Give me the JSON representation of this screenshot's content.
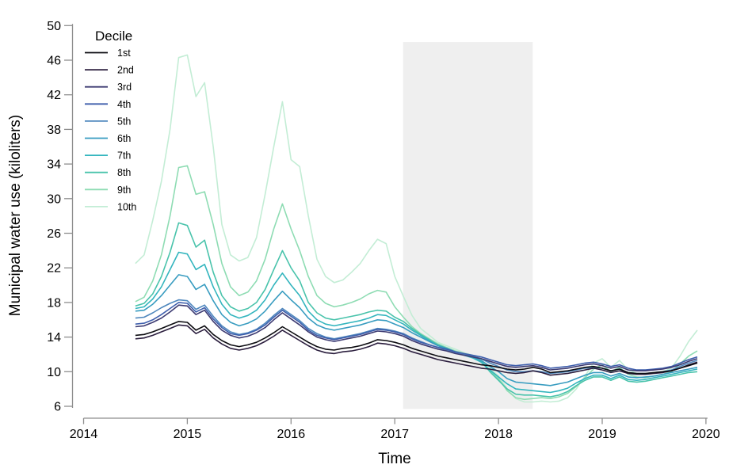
{
  "chart_data": {
    "type": "line",
    "title": "",
    "xlabel": "Time",
    "ylabel": "Municipal water use (kiloliters)",
    "legend_title": "Decile",
    "legend_position": "top-left",
    "grid": false,
    "xlim": [
      2014,
      2020
    ],
    "ylim": [
      6,
      50
    ],
    "x_ticks": [
      2014,
      2015,
      2016,
      2017,
      2018,
      2019,
      2020
    ],
    "y_ticks": [
      6,
      10,
      14,
      18,
      22,
      26,
      30,
      34,
      38,
      42,
      46,
      50
    ],
    "x_start": 2014.5,
    "x_step": 0.0833333,
    "shaded_region": {
      "x0": 2017.08,
      "x1": 2018.33,
      "y0": 5.7,
      "y1": 48.1,
      "color": "#efefef"
    },
    "axis_color": "#8e8e8e",
    "series": [
      {
        "name": "1st",
        "color": "#0d0d12",
        "values": [
          14.2,
          14.3,
          14.6,
          15.0,
          15.4,
          15.8,
          15.7,
          14.8,
          15.3,
          14.3,
          13.6,
          13.1,
          12.9,
          13.1,
          13.4,
          13.9,
          14.5,
          15.2,
          14.6,
          14.0,
          13.4,
          12.9,
          12.6,
          12.5,
          12.7,
          12.8,
          13.0,
          13.3,
          13.7,
          13.6,
          13.4,
          13.1,
          12.7,
          12.4,
          12.1,
          11.8,
          11.6,
          11.4,
          11.2,
          11.0,
          10.8,
          10.7,
          10.5,
          10.3,
          10.2,
          10.3,
          10.5,
          10.3,
          9.9,
          10.0,
          10.1,
          10.3,
          10.5,
          10.6,
          10.4,
          10.1,
          10.3,
          9.9,
          9.8,
          9.8,
          9.9,
          10.0,
          10.1,
          10.4,
          10.7,
          11.0
        ]
      },
      {
        "name": "2nd",
        "color": "#2b1e3e",
        "values": [
          13.8,
          13.9,
          14.2,
          14.6,
          15.0,
          15.4,
          15.3,
          14.4,
          14.9,
          13.9,
          13.2,
          12.7,
          12.5,
          12.7,
          13.0,
          13.5,
          14.1,
          14.8,
          14.2,
          13.6,
          13.0,
          12.5,
          12.2,
          12.1,
          12.3,
          12.4,
          12.6,
          12.9,
          13.3,
          13.2,
          13.0,
          12.7,
          12.3,
          12.0,
          11.7,
          11.4,
          11.2,
          11.0,
          10.8,
          10.6,
          10.4,
          10.3,
          10.1,
          9.9,
          9.8,
          9.9,
          10.1,
          9.9,
          9.6,
          9.7,
          9.8,
          10.0,
          10.2,
          10.4,
          10.2,
          9.9,
          10.1,
          9.8,
          9.7,
          9.7,
          9.8,
          9.9,
          10.1,
          10.4,
          10.8,
          11.1
        ]
      },
      {
        "name": "3rd",
        "color": "#3d3b72",
        "values": [
          15.2,
          15.3,
          15.7,
          16.2,
          16.9,
          17.7,
          17.6,
          16.6,
          17.1,
          15.8,
          14.8,
          14.2,
          13.9,
          14.1,
          14.5,
          15.1,
          16.0,
          16.8,
          16.1,
          15.4,
          14.6,
          14.0,
          13.7,
          13.5,
          13.7,
          13.9,
          14.1,
          14.4,
          14.7,
          14.6,
          14.4,
          14.1,
          13.6,
          13.2,
          12.9,
          12.6,
          12.4,
          12.1,
          11.9,
          11.7,
          11.5,
          11.2,
          10.9,
          10.6,
          10.5,
          10.6,
          10.7,
          10.5,
          10.2,
          10.3,
          10.4,
          10.6,
          10.8,
          10.9,
          10.7,
          10.4,
          10.6,
          10.2,
          10.1,
          10.1,
          10.2,
          10.3,
          10.5,
          10.8,
          11.2,
          11.5
        ]
      },
      {
        "name": "4th",
        "color": "#3e5eac",
        "values": [
          15.5,
          15.6,
          16.0,
          16.6,
          17.3,
          18.0,
          17.9,
          16.9,
          17.4,
          16.1,
          15.1,
          14.4,
          14.2,
          14.4,
          14.8,
          15.4,
          16.3,
          17.1,
          16.4,
          15.7,
          14.8,
          14.2,
          13.9,
          13.7,
          13.9,
          14.1,
          14.3,
          14.6,
          14.9,
          14.8,
          14.6,
          14.3,
          13.8,
          13.4,
          13.1,
          12.8,
          12.6,
          12.3,
          12.1,
          11.9,
          11.7,
          11.4,
          11.1,
          10.8,
          10.7,
          10.8,
          10.9,
          10.7,
          10.4,
          10.5,
          10.6,
          10.8,
          11.0,
          11.1,
          10.9,
          10.6,
          10.8,
          10.4,
          10.2,
          10.2,
          10.3,
          10.4,
          10.6,
          11.0,
          11.4,
          11.7
        ]
      },
      {
        "name": "5th",
        "color": "#4e87bd",
        "values": [
          16.2,
          16.3,
          16.8,
          17.4,
          17.9,
          18.3,
          18.2,
          17.2,
          17.7,
          16.4,
          15.3,
          14.6,
          14.3,
          14.5,
          14.9,
          15.6,
          16.5,
          17.3,
          16.6,
          15.9,
          15.0,
          14.4,
          14.0,
          13.8,
          14.0,
          14.2,
          14.4,
          14.7,
          15.0,
          14.9,
          14.7,
          14.4,
          13.9,
          13.5,
          13.1,
          12.8,
          12.5,
          12.2,
          12.0,
          11.8,
          11.5,
          11.0,
          10.6,
          10.2,
          10.0,
          10.0,
          10.1,
          10.0,
          9.8,
          9.9,
          10.0,
          10.2,
          10.4,
          10.5,
          10.4,
          10.1,
          10.3,
          9.9,
          9.8,
          9.8,
          9.9,
          10.0,
          10.2,
          10.6,
          11.0,
          11.3
        ]
      },
      {
        "name": "6th",
        "color": "#389cc0",
        "values": [
          17.0,
          17.1,
          17.8,
          18.8,
          20.0,
          21.2,
          21.0,
          19.5,
          20.1,
          18.2,
          16.6,
          15.7,
          15.3,
          15.6,
          16.1,
          17.0,
          18.2,
          19.3,
          18.3,
          17.4,
          16.2,
          15.4,
          15.0,
          14.8,
          15.0,
          15.2,
          15.4,
          15.7,
          16.0,
          15.9,
          15.5,
          15.1,
          14.5,
          14.0,
          13.5,
          13.0,
          12.7,
          12.3,
          12.0,
          11.7,
          11.3,
          10.6,
          10.0,
          9.2,
          8.8,
          8.7,
          8.6,
          8.5,
          8.4,
          8.6,
          8.8,
          9.2,
          9.6,
          9.9,
          9.9,
          9.5,
          9.8,
          9.4,
          9.3,
          9.4,
          9.5,
          9.7,
          9.9,
          10.1,
          10.3,
          10.5
        ]
      },
      {
        "name": "7th",
        "color": "#33b5be",
        "values": [
          17.3,
          17.5,
          18.4,
          19.8,
          21.8,
          23.8,
          23.6,
          21.8,
          22.4,
          19.8,
          17.8,
          16.6,
          16.2,
          16.5,
          17.1,
          18.3,
          20.0,
          21.4,
          20.0,
          18.8,
          17.0,
          16.0,
          15.5,
          15.3,
          15.5,
          15.7,
          15.9,
          16.2,
          16.6,
          16.5,
          16.0,
          15.5,
          14.8,
          14.2,
          13.6,
          13.0,
          12.6,
          12.2,
          11.9,
          11.6,
          11.1,
          10.2,
          9.4,
          8.6,
          8.0,
          7.9,
          7.8,
          7.7,
          7.6,
          7.8,
          8.1,
          8.7,
          9.2,
          9.6,
          9.6,
          9.2,
          9.6,
          9.1,
          9.0,
          9.1,
          9.3,
          9.5,
          9.7,
          9.9,
          10.1,
          10.3
        ]
      },
      {
        "name": "8th",
        "color": "#49c3ab",
        "values": [
          17.6,
          17.9,
          19.0,
          21.0,
          23.8,
          27.2,
          26.9,
          24.4,
          25.2,
          21.5,
          18.8,
          17.5,
          17.0,
          17.3,
          18.0,
          19.5,
          21.8,
          24.0,
          22.0,
          20.5,
          18.0,
          16.8,
          16.2,
          16.0,
          16.2,
          16.4,
          16.6,
          16.9,
          17.1,
          17.0,
          16.3,
          15.8,
          15.0,
          14.3,
          13.7,
          13.1,
          12.7,
          12.3,
          12.0,
          11.7,
          11.2,
          10.0,
          9.0,
          8.0,
          7.4,
          7.3,
          7.3,
          7.2,
          7.1,
          7.3,
          7.7,
          8.4,
          9.0,
          9.4,
          9.4,
          9.0,
          9.4,
          8.9,
          8.8,
          8.9,
          9.1,
          9.3,
          9.5,
          9.7,
          9.9,
          10.0
        ]
      },
      {
        "name": "9th",
        "color": "#8edcb3",
        "values": [
          18.1,
          18.6,
          20.5,
          23.5,
          28.0,
          33.6,
          33.8,
          30.5,
          30.8,
          27.0,
          22.5,
          19.8,
          18.8,
          19.2,
          20.5,
          23.0,
          26.5,
          29.4,
          26.5,
          24.0,
          21.0,
          18.8,
          17.9,
          17.5,
          17.7,
          18.0,
          18.4,
          19.0,
          19.4,
          19.2,
          17.5,
          16.3,
          15.2,
          14.4,
          13.8,
          13.2,
          12.8,
          12.4,
          12.1,
          11.8,
          11.3,
          10.1,
          9.2,
          7.8,
          7.0,
          6.8,
          6.9,
          7.0,
          6.9,
          7.1,
          7.5,
          8.3,
          9.3,
          10.3,
          10.8,
          10.0,
          10.5,
          9.7,
          9.4,
          9.3,
          9.5,
          9.7,
          10.0,
          10.9,
          11.8,
          12.4
        ]
      },
      {
        "name": "10th",
        "color": "#c3edd5",
        "values": [
          22.5,
          23.5,
          27.5,
          32.0,
          38.0,
          46.3,
          46.6,
          41.8,
          43.4,
          36.0,
          27.0,
          23.5,
          22.8,
          23.2,
          25.5,
          30.5,
          36.0,
          41.2,
          34.5,
          33.7,
          28.0,
          23.0,
          21.0,
          20.3,
          20.6,
          21.5,
          22.5,
          24.0,
          25.3,
          24.8,
          21.0,
          18.7,
          16.5,
          15.0,
          14.2,
          13.4,
          13.0,
          12.6,
          12.2,
          11.9,
          11.4,
          10.4,
          9.5,
          8.0,
          6.9,
          6.5,
          6.5,
          6.6,
          6.5,
          6.6,
          7.0,
          8.0,
          9.5,
          11.0,
          11.5,
          10.5,
          11.3,
          10.2,
          9.8,
          9.7,
          9.8,
          10.0,
          10.4,
          11.8,
          13.5,
          14.8
        ]
      }
    ]
  }
}
